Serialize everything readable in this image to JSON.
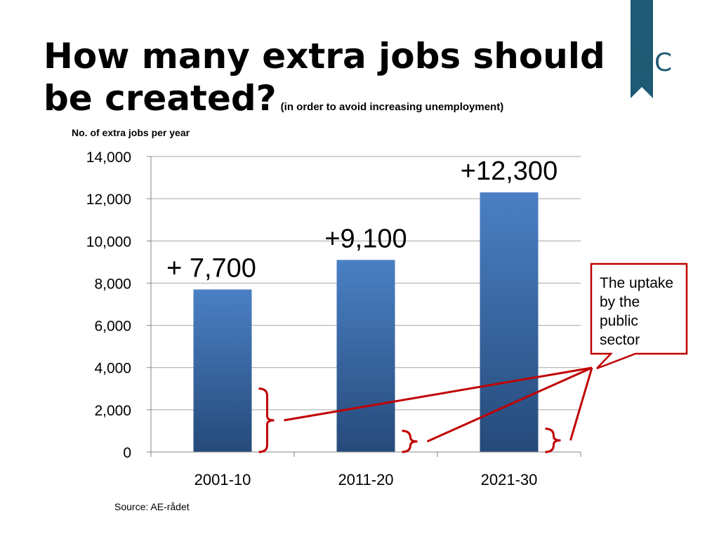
{
  "slide": {
    "title": "How many extra jobs should be created?",
    "subtitle": "(in order to avoid increasing unemployment)",
    "source": "Source: AE-rådet",
    "logo_text": "AC",
    "callout_text": "The uptake by the public sector",
    "colors": {
      "bar_top": "#4a80c4",
      "bar_bottom": "#264a7a",
      "bracket": "#c00000",
      "logo": "#1e5a73"
    }
  },
  "chart_data": {
    "type": "bar",
    "title": "",
    "ylabel": "No. of extra jobs per year",
    "xlabel": "",
    "categories": [
      "2001-10",
      "2011-20",
      "2021-30"
    ],
    "values": [
      7700,
      9100,
      12300
    ],
    "data_labels": [
      "+ 7,700",
      "+9,100",
      "+12,300"
    ],
    "ylim": [
      0,
      14000
    ],
    "yticks": [
      0,
      2000,
      4000,
      6000,
      8000,
      10000,
      12000,
      14000
    ],
    "ytick_labels": [
      "0",
      "2,000",
      "4,000",
      "6,000",
      "8,000",
      "10,000",
      "12,000",
      "14,000"
    ],
    "grid": true,
    "legend": "none",
    "public_sector_uptake_brackets": [
      {
        "category": "2001-10",
        "range": [
          0,
          3000
        ]
      },
      {
        "category": "2011-20",
        "range": [
          0,
          1000
        ]
      },
      {
        "category": "2021-30",
        "range": [
          0,
          1100
        ]
      }
    ]
  }
}
